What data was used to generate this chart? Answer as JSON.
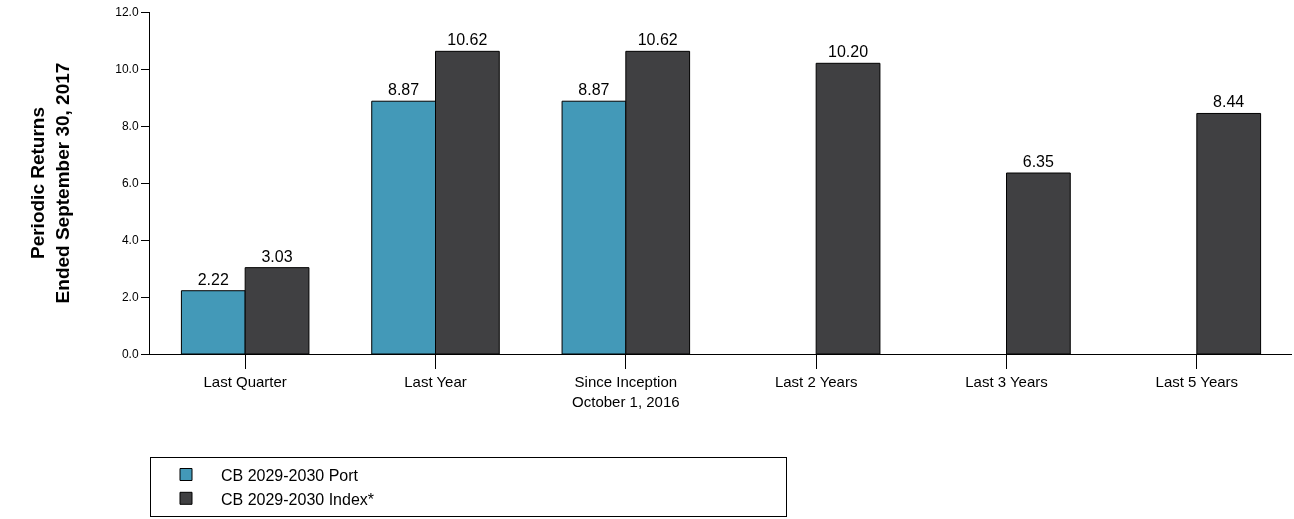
{
  "chart_data": {
    "type": "bar",
    "ylabel": "Periodic Returns\nEnded September 30, 2017",
    "categories": [
      "Last Quarter",
      "Last Year",
      "Since Inception\nOctober 1, 2016",
      "Last 2 Years",
      "Last 3 Years",
      "Last 5 Years"
    ],
    "series": [
      {
        "name": "CB 2029-2030 Port",
        "color": "#4399b8",
        "values": [
          2.22,
          8.87,
          8.87,
          null,
          null,
          null
        ],
        "value_labels": [
          "2.22",
          "8.87",
          "8.87",
          null,
          null,
          null
        ]
      },
      {
        "name": "CB 2029-2030 Index*",
        "color": "#404042",
        "values": [
          3.03,
          10.62,
          10.62,
          10.2,
          6.35,
          8.44
        ],
        "value_labels": [
          "3.03",
          "10.62",
          "10.62",
          "10.20",
          "6.35",
          "8.44"
        ]
      }
    ],
    "ylim": [
      0,
      12
    ],
    "yticks": [
      {
        "value": 0,
        "label": "0.0"
      },
      {
        "value": 2,
        "label": "2.0"
      },
      {
        "value": 4,
        "label": "4.0"
      },
      {
        "value": 6,
        "label": "6.0"
      },
      {
        "value": 8,
        "label": "8.0"
      },
      {
        "value": 10,
        "label": "10.0"
      },
      {
        "value": 12,
        "label": "12.0"
      }
    ],
    "grid": false,
    "legend": "bottom"
  }
}
